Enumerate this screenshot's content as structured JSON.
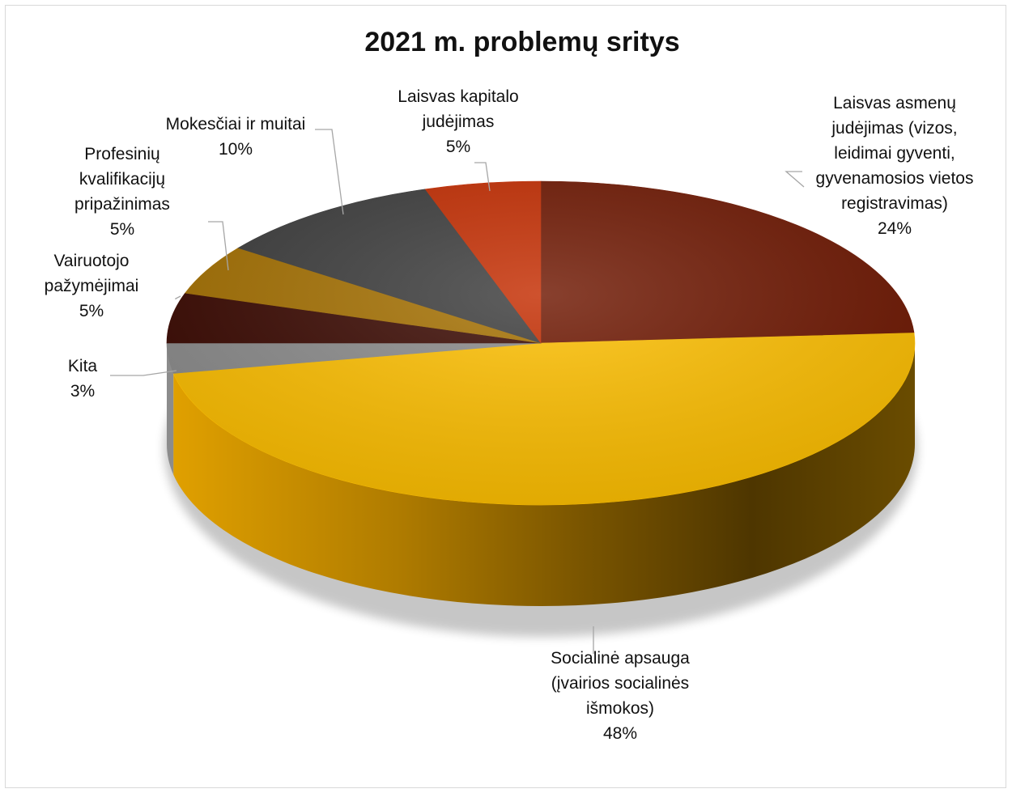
{
  "chart_data": {
    "type": "pie",
    "title": "2021 m. problemų sritys",
    "slices": [
      {
        "label": [
          "Laisvas asmenų",
          "judėjimas (vizos,",
          "leidimai gyventi,",
          "gyvenamosios vietos",
          "registravimas)"
        ],
        "value": 24,
        "value_label": "24%",
        "color": "#6e1600"
      },
      {
        "label": [
          "Socialinė apsauga",
          "(įvairios socialinės",
          "išmokos)"
        ],
        "value": 48,
        "value_label": "48%",
        "color": "#ffc000"
      },
      {
        "label": [
          "Kita"
        ],
        "value": 3,
        "value_label": "3%",
        "color": "#8c8c8c"
      },
      {
        "label": [
          "Vairuotojo",
          "pažymėjimai"
        ],
        "value": 5,
        "value_label": "5%",
        "color": "#3a0800"
      },
      {
        "label": [
          "Profesinių",
          "kvalifikacijų",
          "pripažinimas"
        ],
        "value": 5,
        "value_label": "5%",
        "color": "#a57000"
      },
      {
        "label": [
          "Mokesčiai ir muitai"
        ],
        "value": 10,
        "value_label": "10%",
        "color": "#3c3c3c"
      },
      {
        "label": [
          "Laisvas kapitalo",
          "judėjimas"
        ],
        "value": 5,
        "value_label": "5%",
        "color": "#c42c00"
      }
    ]
  }
}
